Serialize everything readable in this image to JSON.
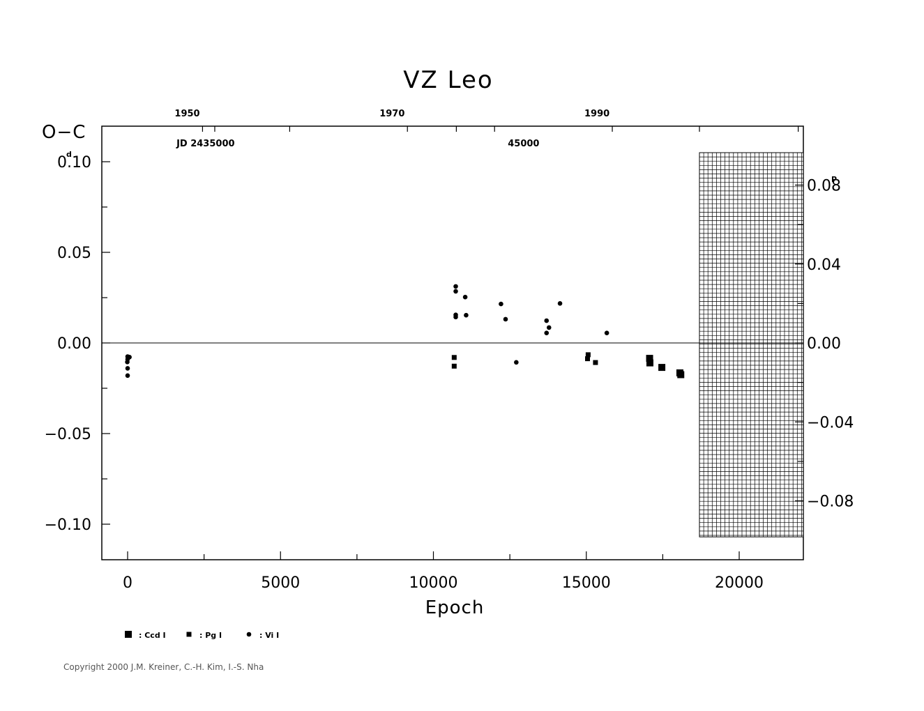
{
  "chart_data": {
    "type": "scatter",
    "title": "VZ Leo",
    "ylabel": "O−C",
    "ylabel_unit_left": "d",
    "ylabel_unit_right": "P",
    "xlabel": "Epoch",
    "xlim": [
      -800,
      22000
    ],
    "ylim": [
      -0.12,
      0.12
    ],
    "x_ticks": [
      0,
      5000,
      10000,
      15000,
      20000
    ],
    "x_tick_labels": [
      "0",
      "5000",
      "10000",
      "15000",
      "20000"
    ],
    "y_ticks": [
      0.1,
      0.05,
      0.0,
      -0.05,
      -0.1
    ],
    "y_tick_labels": [
      "0.10",
      "0.05",
      "0.00",
      "−0.05",
      "−0.10"
    ],
    "top_year_labels": [
      {
        "epoch": 1950,
        "label": "1950"
      },
      {
        "epoch": 8650,
        "label": "1970"
      },
      {
        "epoch": 15350,
        "label": "1990"
      }
    ],
    "top_jd_labels": [
      {
        "epoch": 2550,
        "label": "JD 2435000"
      },
      {
        "epoch": 12950,
        "label": "45000"
      }
    ],
    "right_axis_ticks": [
      0.08,
      0.04,
      0.0,
      -0.04,
      -0.08
    ],
    "right_axis_tick_labels": [
      "0.08",
      "0.04",
      "0.00",
      "−0.04",
      "−0.08"
    ],
    "right_axis_phase_per_day": 0.7666,
    "hatched_region": {
      "x_from": 18700,
      "x_to": 22000,
      "y_from": -0.107,
      "y_to": 0.105
    },
    "series": [
      {
        "name": ": Ccd I",
        "marker": "square-large",
        "points": [
          [
            17070,
            -0.0085
          ],
          [
            17080,
            -0.011
          ],
          [
            17470,
            -0.0135
          ],
          [
            18060,
            -0.0165
          ],
          [
            18090,
            -0.0175
          ]
        ]
      },
      {
        "name": ": Pg I",
        "marker": "square-small",
        "points": [
          [
            10680,
            -0.008
          ],
          [
            10680,
            -0.0128
          ],
          [
            15040,
            -0.0087
          ],
          [
            15060,
            -0.0065
          ],
          [
            15300,
            -0.0108
          ]
        ]
      },
      {
        "name": ": Vi I",
        "marker": "dot",
        "points": [
          [
            0,
            -0.0075
          ],
          [
            0,
            -0.009
          ],
          [
            -10,
            -0.0105
          ],
          [
            0,
            -0.014
          ],
          [
            0,
            -0.018
          ],
          [
            60,
            -0.0078
          ],
          [
            10730,
            0.0312
          ],
          [
            10730,
            0.0285
          ],
          [
            10730,
            0.0155
          ],
          [
            10730,
            0.0143
          ],
          [
            11040,
            0.0253
          ],
          [
            11070,
            0.0153
          ],
          [
            12210,
            0.0215
          ],
          [
            12360,
            0.0131
          ],
          [
            12710,
            -0.0107
          ],
          [
            13700,
            0.0123
          ],
          [
            13700,
            0.0055
          ],
          [
            13780,
            0.0085
          ],
          [
            14140,
            0.0218
          ],
          [
            15670,
            0.0055
          ]
        ]
      }
    ]
  },
  "footer": {
    "copyright": "Copyright 2000 J.M. Kreiner, C.-H. Kim, I.-S. Nha"
  }
}
